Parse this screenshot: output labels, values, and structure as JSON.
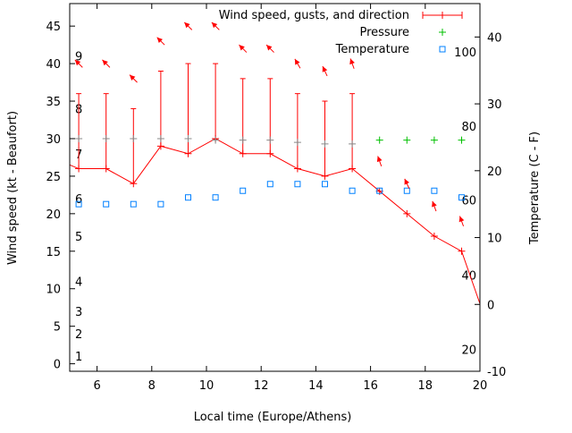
{
  "chart_data": {
    "type": "line",
    "title": "",
    "xlabel": "Local time (Europe/Athens)",
    "ylabel": "Wind speed (kt - Beaufort)",
    "y2label": "Temperature (C - F)",
    "xlim": [
      5,
      20
    ],
    "ylim": [
      -1,
      48
    ],
    "y2lim": [
      -10,
      45
    ],
    "x_ticks": [
      6,
      8,
      10,
      12,
      14,
      16,
      18,
      20
    ],
    "y_ticks": [
      0,
      5,
      10,
      15,
      20,
      25,
      30,
      35,
      40,
      45
    ],
    "y2_ticks": [
      -10,
      0,
      10,
      20,
      30,
      40
    ],
    "grid": false,
    "legend_position": "top-right",
    "legend": [
      "Wind speed, gusts, and direction",
      "Pressure",
      "Temperature"
    ],
    "colors": {
      "wind": "#ff0000",
      "pressure": "#00c000",
      "temperature": "#0080ff"
    },
    "beaufort_labels": [
      {
        "label": "1",
        "wind": 1
      },
      {
        "label": "2",
        "wind": 4
      },
      {
        "label": "3",
        "wind": 7
      },
      {
        "label": "4",
        "wind": 11
      },
      {
        "label": "5",
        "wind": 17
      },
      {
        "label": "6",
        "wind": 22
      },
      {
        "label": "7",
        "wind": 28
      },
      {
        "label": "8",
        "wind": 34
      },
      {
        "label": "9",
        "wind": 41
      }
    ],
    "fahrenheit_labels": [
      {
        "label": "20",
        "celsius": -6.7
      },
      {
        "label": "40",
        "celsius": 4.4
      },
      {
        "label": "60",
        "celsius": 15.6
      },
      {
        "label": "80",
        "celsius": 26.7
      },
      {
        "label": "100",
        "celsius": 37.8
      }
    ],
    "x": [
      5.33,
      6.33,
      7.33,
      8.33,
      9.33,
      10.33,
      11.33,
      12.33,
      13.33,
      14.33,
      15.33,
      16.33,
      17.33,
      18.33,
      19.33
    ],
    "wind_line_ends": {
      "start": [
        5,
        26.5
      ],
      "end": [
        20,
        8
      ]
    },
    "series": [
      {
        "name": "Wind speed",
        "values": [
          26,
          26,
          24,
          29,
          28,
          30,
          28,
          28,
          26,
          25,
          26,
          23,
          20,
          17,
          15
        ]
      },
      {
        "name": "Gusts",
        "values": [
          36,
          36,
          34,
          39,
          40,
          40,
          38,
          38,
          36,
          35,
          36,
          null,
          null,
          null,
          null
        ]
      },
      {
        "name": "Pressure",
        "values": [
          30,
          30,
          30,
          30,
          30,
          29.8,
          29.8,
          29.8,
          29.5,
          29.3,
          29.3,
          29.8,
          29.8,
          29.8,
          29.8
        ]
      },
      {
        "name": "Temperature",
        "values": [
          15,
          15,
          15,
          15,
          16,
          16,
          17,
          18,
          18,
          18,
          17,
          17,
          17,
          17,
          16
        ]
      },
      {
        "name": "Direction arrows (wind-axis height)",
        "values": [
          40,
          40,
          38,
          43,
          45,
          45,
          42,
          42,
          40,
          39,
          40,
          27,
          24,
          21,
          19
        ]
      },
      {
        "name": "Direction (deg, arrow heading)",
        "values": [
          315,
          315,
          315,
          315,
          315,
          315,
          315,
          315,
          330,
          335,
          340,
          340,
          335,
          340,
          340
        ]
      }
    ]
  }
}
